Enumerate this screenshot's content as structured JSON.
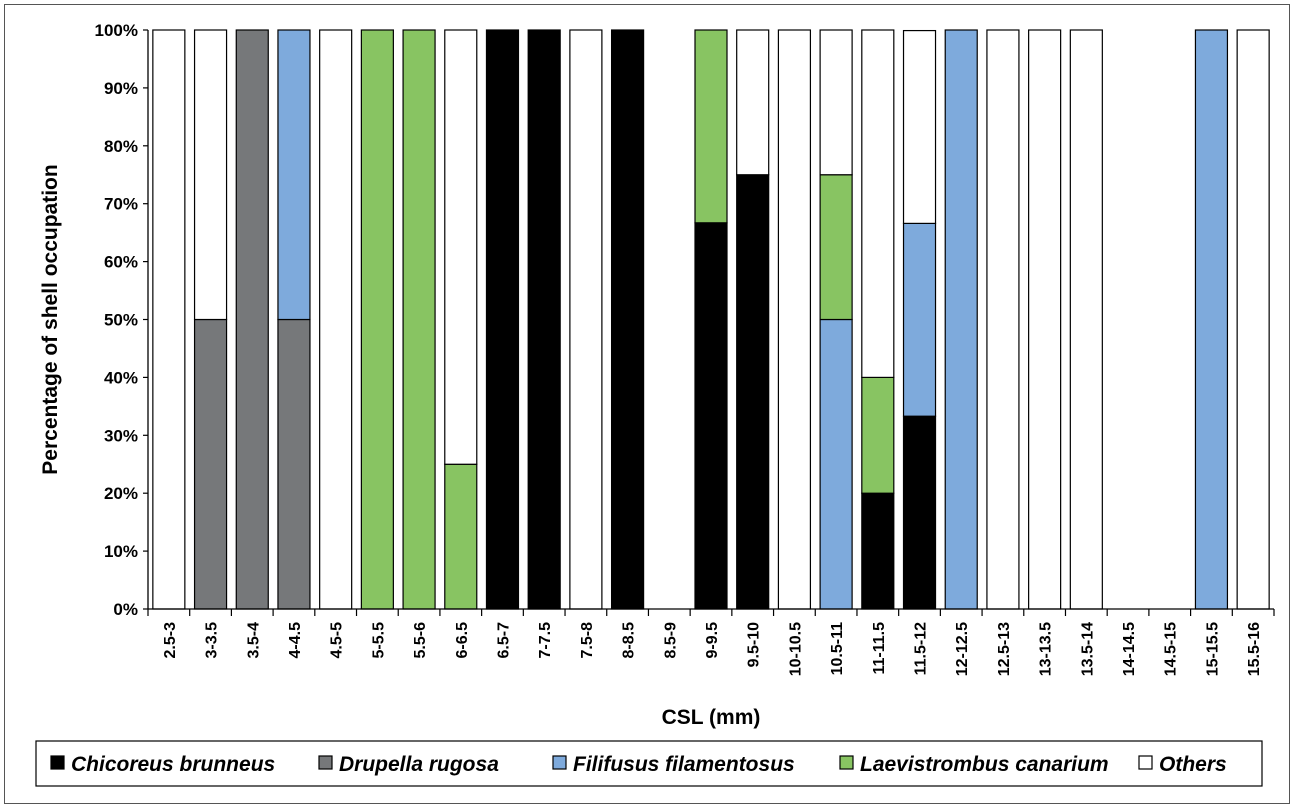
{
  "chart_data": {
    "type": "bar",
    "stacked": true,
    "title": "",
    "xlabel": "CSL (mm)",
    "ylabel": "Percentage of shell occupation",
    "ylim": [
      0,
      100
    ],
    "y_ticks": [
      "0%",
      "10%",
      "20%",
      "30%",
      "40%",
      "50%",
      "60%",
      "70%",
      "80%",
      "90%",
      "100%"
    ],
    "grid": false,
    "legend_position": "bottom",
    "categories": [
      "2.5-3",
      "3-3.5",
      "3.5-4",
      "4-4.5",
      "4.5-5",
      "5-5.5",
      "5.5-6",
      "6-6.5",
      "6.5-7",
      "7-7.5",
      "7.5-8",
      "8-8.5",
      "8.5-9",
      "9-9.5",
      "9.5-10",
      "10-10.5",
      "10.5-11",
      "11-11.5",
      "11.5-12",
      "12-12.5",
      "12.5-13",
      "13-13.5",
      "13.5-14",
      "14-14.5",
      "14.5-15",
      "15-15.5",
      "15.5-16"
    ],
    "series": [
      {
        "name": "Chicoreus brunneus",
        "color": "#000000",
        "values": [
          0,
          0,
          0,
          0,
          0,
          0,
          0,
          0,
          100,
          100,
          0,
          100,
          0,
          66.7,
          75,
          0,
          0,
          20,
          33.3,
          0,
          0,
          0,
          0,
          0,
          0,
          0,
          0
        ]
      },
      {
        "name": "Drupella rugosa",
        "color": "#76787a",
        "values": [
          0,
          50,
          100,
          50,
          0,
          0,
          0,
          0,
          0,
          0,
          0,
          0,
          0,
          0,
          0,
          0,
          0,
          0,
          0,
          0,
          0,
          0,
          0,
          0,
          0,
          0,
          0
        ]
      },
      {
        "name": "Filifusus filamentosus",
        "color": "#7eaadc",
        "values": [
          0,
          0,
          0,
          50,
          0,
          0,
          0,
          0,
          0,
          0,
          0,
          0,
          0,
          0,
          0,
          0,
          50,
          0,
          33.3,
          100,
          0,
          0,
          0,
          0,
          0,
          100,
          0
        ]
      },
      {
        "name": "Laevistrombus canarium",
        "color": "#88c462",
        "values": [
          0,
          0,
          0,
          0,
          0,
          100,
          100,
          25,
          0,
          0,
          0,
          0,
          0,
          33.3,
          0,
          0,
          25,
          20,
          0,
          0,
          0,
          0,
          0,
          0,
          0,
          0,
          0
        ]
      },
      {
        "name": "Others",
        "color": "#ffffff",
        "values": [
          100,
          50,
          0,
          0,
          100,
          0,
          0,
          75,
          0,
          0,
          100,
          0,
          0,
          0,
          25,
          100,
          25,
          60,
          33.3,
          0,
          100,
          100,
          100,
          0,
          0,
          0,
          100
        ]
      }
    ]
  }
}
